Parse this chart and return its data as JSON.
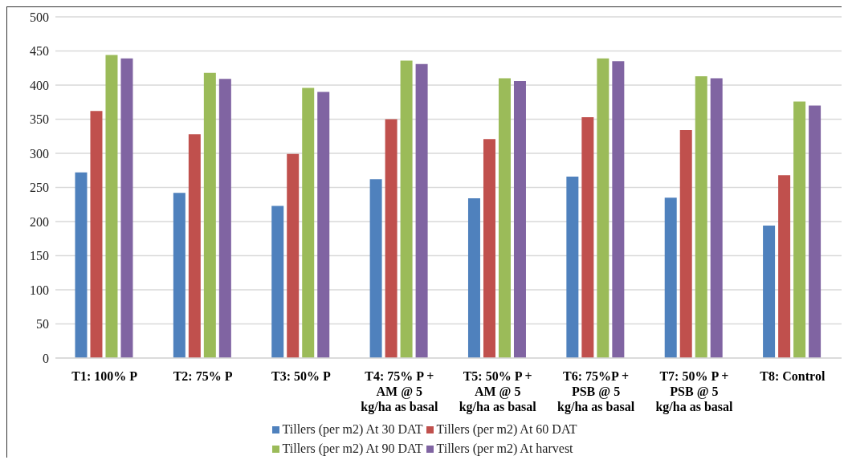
{
  "chart_data": {
    "type": "bar",
    "categories": [
      "T1: 100% P",
      "T2: 75% P",
      "T3: 50% P",
      "T4: 75% P +\nAM @ 5\nkg/ha as basal",
      "T5: 50% P +\nAM @ 5\nkg/ha as basal",
      "T6: 75%P +\nPSB @ 5\nkg/ha as basal",
      "T7: 50% P +\nPSB @ 5\nkg/ha as basal",
      "T8: Control"
    ],
    "series": [
      {
        "name": "Tillers (per m2) At 30 DAT",
        "color": "#4f81bd",
        "values": [
          272,
          242,
          223,
          262,
          234,
          266,
          235,
          194
        ]
      },
      {
        "name": "Tillers (per m2) At 60 DAT",
        "color": "#c0504d",
        "values": [
          362,
          328,
          299,
          350,
          321,
          353,
          334,
          268
        ]
      },
      {
        "name": "Tillers (per m2) At 90 DAT",
        "color": "#9bbb59",
        "values": [
          444,
          418,
          396,
          436,
          410,
          439,
          413,
          376
        ]
      },
      {
        "name": "Tillers (per m2) At harvest",
        "color": "#8064a2",
        "values": [
          439,
          409,
          390,
          431,
          406,
          435,
          410,
          370
        ]
      }
    ],
    "ylim": [
      0,
      500
    ],
    "yticks": [
      0,
      50,
      100,
      150,
      200,
      250,
      300,
      350,
      400,
      450,
      500
    ],
    "grid": "y",
    "legend": "bottom"
  }
}
